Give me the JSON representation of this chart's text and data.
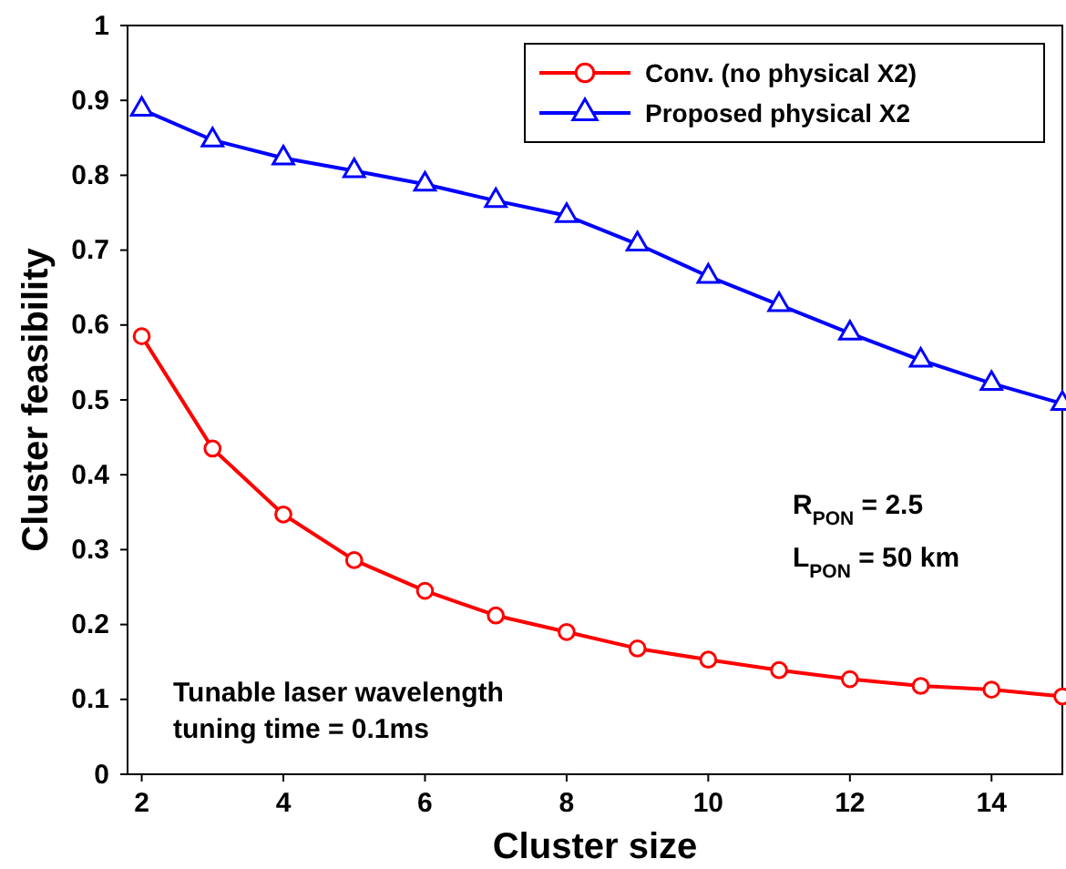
{
  "chart_data": {
    "type": "line",
    "xlabel": "Cluster size",
    "ylabel": "Cluster feasibility",
    "x": [
      2,
      3,
      4,
      5,
      6,
      7,
      8,
      9,
      10,
      11,
      12,
      13,
      14,
      15
    ],
    "series": [
      {
        "name": "Conv. (no physical X2)",
        "color": "#ff0000",
        "marker": "circle",
        "values": [
          0.585,
          0.435,
          0.347,
          0.286,
          0.245,
          0.212,
          0.19,
          0.168,
          0.153,
          0.139,
          0.127,
          0.118,
          0.113,
          0.104
        ]
      },
      {
        "name": "Proposed physical X2",
        "color": "#0000ff",
        "marker": "triangle",
        "values": [
          0.888,
          0.847,
          0.823,
          0.806,
          0.788,
          0.766,
          0.746,
          0.708,
          0.665,
          0.627,
          0.589,
          0.553,
          0.522,
          0.495
        ]
      }
    ],
    "xlim": [
      1.8,
      15
    ],
    "xticks": [
      2,
      4,
      6,
      8,
      10,
      12,
      14
    ],
    "ylim": [
      0,
      1
    ],
    "yticks": [
      0,
      0.1,
      0.2,
      0.3,
      0.4,
      0.5,
      0.6,
      0.7,
      0.8,
      0.9,
      1
    ],
    "legend": "top right",
    "line_style": "solid",
    "annotations": [
      "R$_{PON}$ = 2.5",
      "L$_{PON}$ = 50 km",
      "Tunable laser wavelength\ntuning time = 0.1ms"
    ]
  }
}
